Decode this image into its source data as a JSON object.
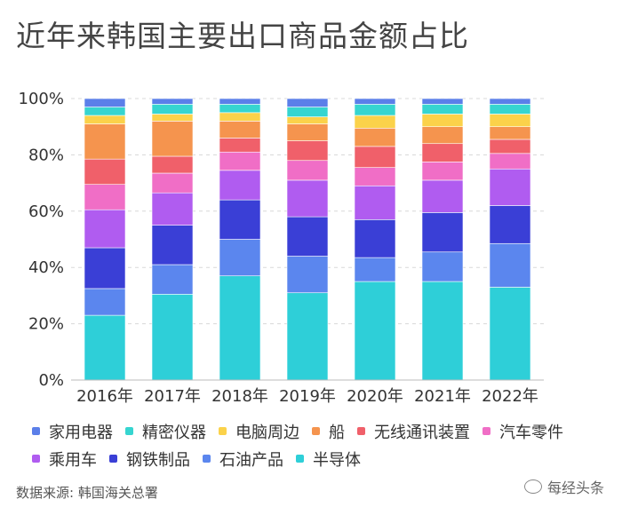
{
  "title": "近年来韩国主要出口商品金额占比",
  "source": "数据来源: 韩国海关总署",
  "watermark": "每经头条",
  "chart_data": {
    "type": "bar",
    "stacked": true,
    "title": "近年来韩国主要出口商品金额占比",
    "categories": [
      "2016年",
      "2017年",
      "2018年",
      "2019年",
      "2020年",
      "2021年",
      "2022年"
    ],
    "yticks": [
      "0%",
      "20%",
      "40%",
      "60%",
      "80%",
      "100%"
    ],
    "ylim": [
      0,
      100
    ],
    "grid": true,
    "legend_position": "bottom",
    "series": [
      {
        "name": "半导体",
        "color": "#2ecfd8",
        "values": [
          23,
          30.5,
          37,
          31,
          35,
          35,
          33
        ]
      },
      {
        "name": "石油产品",
        "color": "#5b86ee",
        "values": [
          9.5,
          10.5,
          13,
          13,
          8.5,
          10.5,
          15.5
        ]
      },
      {
        "name": "钢铁制品",
        "color": "#3a3fd6",
        "values": [
          14.5,
          14,
          14,
          14,
          13.5,
          14,
          13.5
        ]
      },
      {
        "name": "乘用车",
        "color": "#b05cf0",
        "values": [
          13.5,
          11.5,
          10.5,
          13,
          12,
          11.5,
          13
        ]
      },
      {
        "name": "汽车零件",
        "color": "#f06ec6",
        "values": [
          9,
          7,
          6.5,
          7,
          6.5,
          6.5,
          5.5
        ]
      },
      {
        "name": "无线通讯装置",
        "color": "#f0606a",
        "values": [
          9,
          6,
          5,
          7,
          7.5,
          6.5,
          5
        ]
      },
      {
        "name": "船",
        "color": "#f5944e",
        "values": [
          12.5,
          12.5,
          6,
          6,
          6.5,
          6,
          4.5
        ]
      },
      {
        "name": "电脑周边",
        "color": "#fbd24a",
        "values": [
          3,
          2.5,
          3,
          2.5,
          4.5,
          4.5,
          4.5
        ]
      },
      {
        "name": "精密仪器",
        "color": "#36d5d0",
        "values": [
          3,
          3.5,
          3,
          3.5,
          4,
          3.5,
          3.5
        ]
      },
      {
        "name": "家用电器",
        "color": "#5b7fe9",
        "values": [
          3,
          2,
          2,
          3,
          2,
          2,
          2
        ]
      }
    ],
    "legend_order": [
      [
        "家用电器",
        "精密仪器",
        "电脑周边",
        "船",
        "无线通讯装置",
        "汽车零件"
      ],
      [
        "乘用车",
        "钢铁制品",
        "石油产品",
        "半导体"
      ]
    ]
  }
}
